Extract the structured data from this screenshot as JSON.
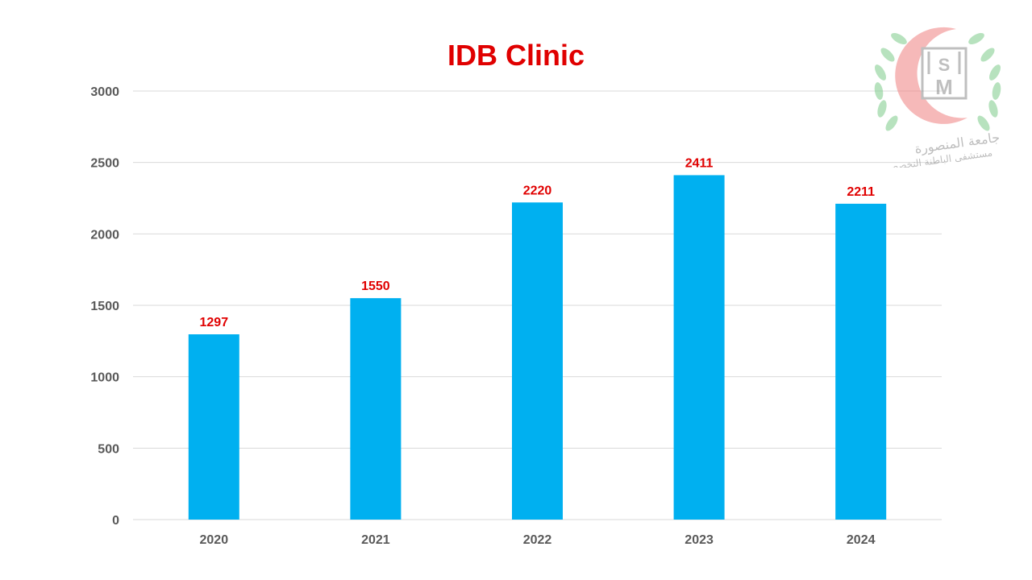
{
  "chart_data": {
    "type": "bar",
    "title": "IDB Clinic",
    "categories": [
      "2020",
      "2021",
      "2022",
      "2023",
      "2024"
    ],
    "values": [
      1297,
      1550,
      2220,
      2411,
      2211
    ],
    "data_labels": [
      "1297",
      "1550",
      "2220",
      "2411",
      "2211"
    ],
    "xlabel": "",
    "ylabel": "",
    "ylim": [
      0,
      3000
    ],
    "yticks": [
      "0",
      "500",
      "1000",
      "1500",
      "2000",
      "2500",
      "3000"
    ],
    "grid": true,
    "legend": "none",
    "colors": {
      "bar": "#00B0F0",
      "title": "#E00000",
      "data_label": "#E00000",
      "grid": "#D9D9D9",
      "tick": "#595959"
    }
  },
  "logo": {
    "monogram": "HSM",
    "arabic_line1": "جامعة المنصورة",
    "arabic_line2": "مستشفى الباطنة التخصصي",
    "colors": {
      "crescent": "#F08080",
      "wreath": "#7DCB8A",
      "letters": "#8C8C8C"
    }
  }
}
